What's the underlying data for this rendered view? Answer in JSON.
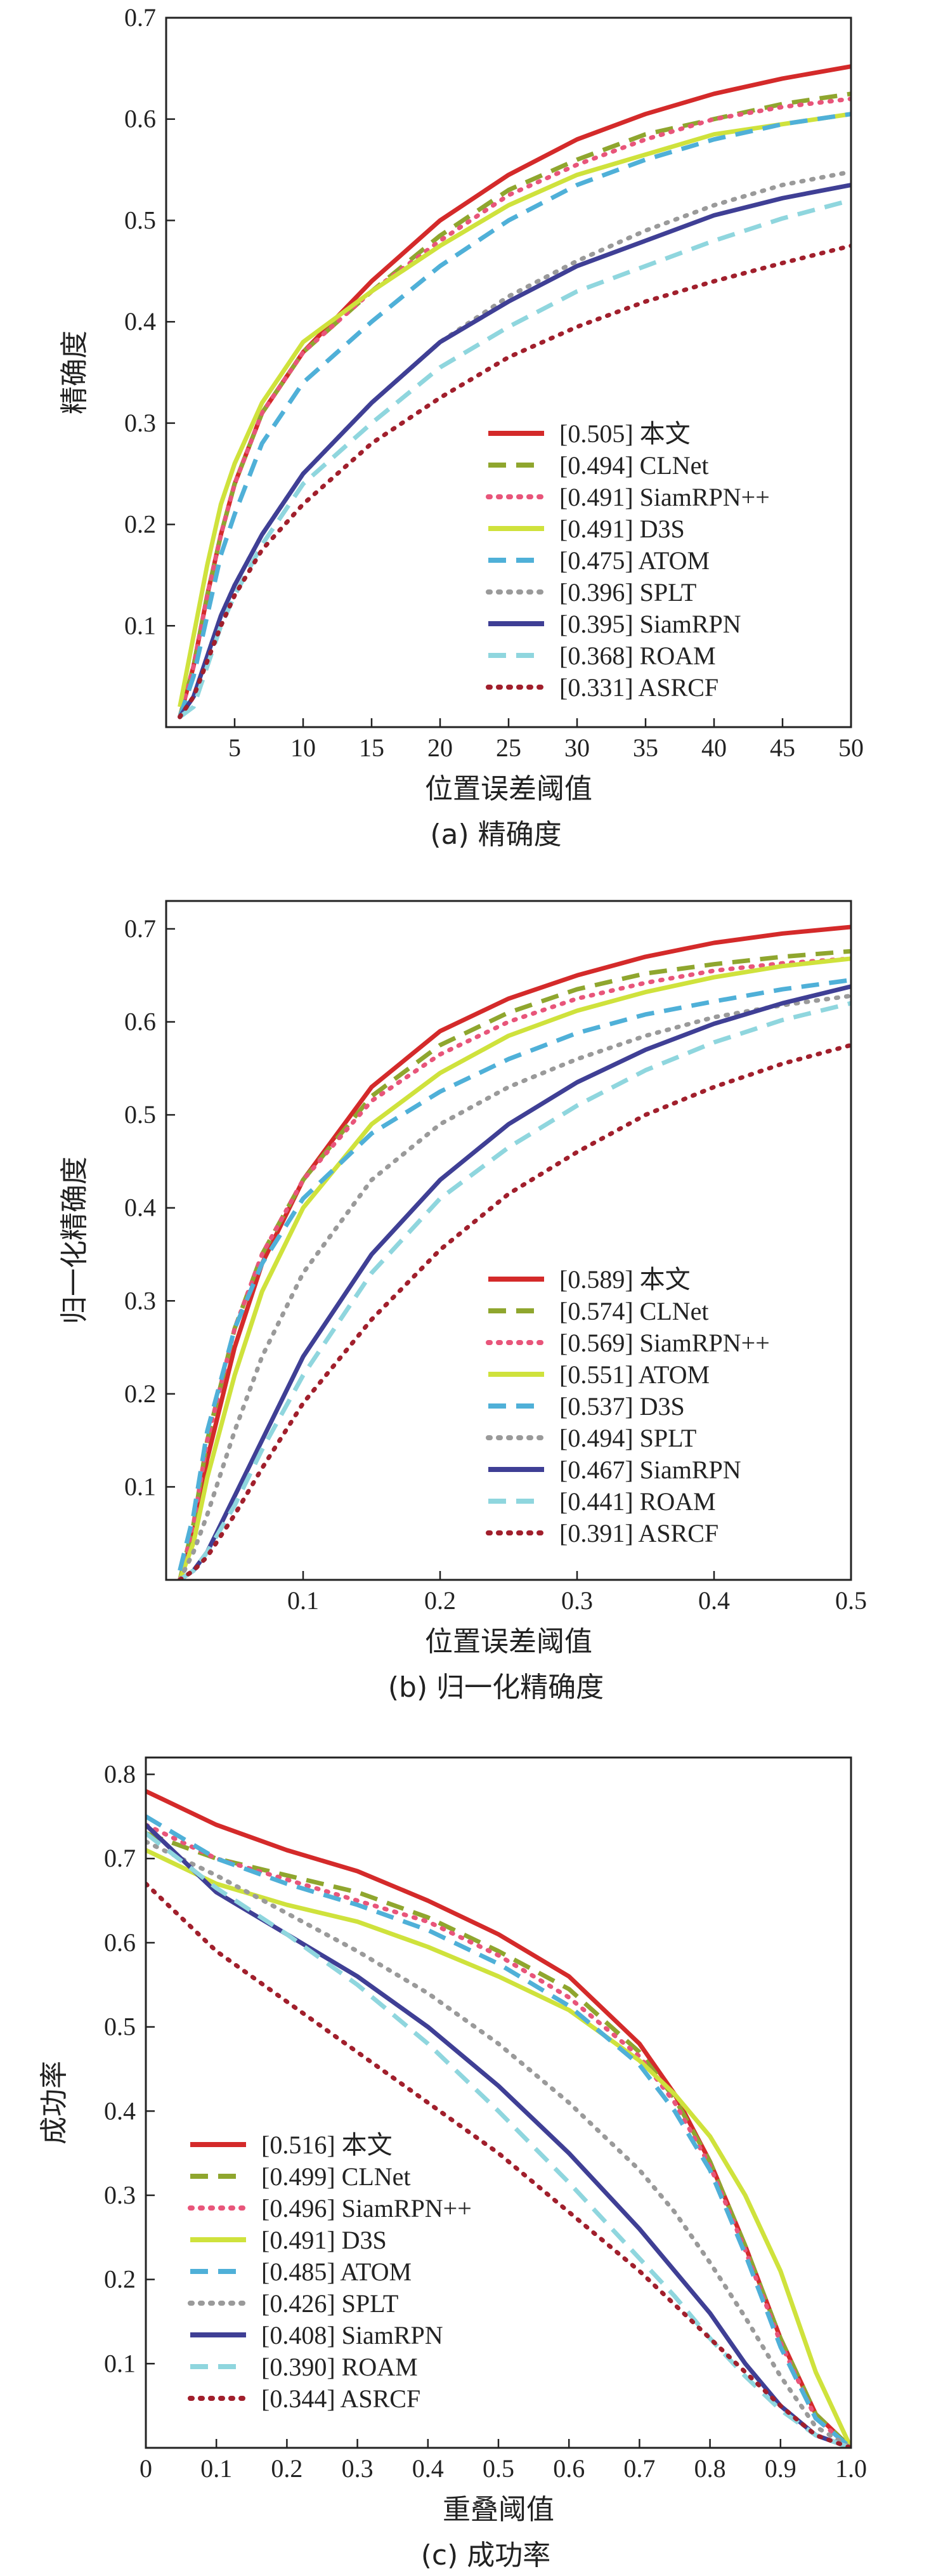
{
  "chart_data": [
    {
      "type": "line",
      "caption": "(a) 精确度",
      "xlabel": "位置误差阈值",
      "ylabel": "精确度",
      "xlim": [
        0,
        50
      ],
      "ylim": [
        0,
        0.7
      ],
      "xticks": [
        5,
        10,
        15,
        20,
        25,
        30,
        35,
        40,
        45,
        50
      ],
      "yticks": [
        0.1,
        0.2,
        0.3,
        0.4,
        0.5,
        0.6,
        0.7
      ],
      "x": [
        1,
        2,
        3,
        4,
        5,
        7,
        10,
        15,
        20,
        25,
        30,
        35,
        40,
        45,
        50
      ],
      "legend_position": "bottom-right",
      "series": [
        {
          "name": "本文",
          "score": "[0.505]",
          "color": "#d42a2a",
          "style": "solid",
          "values": [
            0.01,
            0.06,
            0.13,
            0.19,
            0.24,
            0.31,
            0.37,
            0.44,
            0.5,
            0.545,
            0.58,
            0.605,
            0.625,
            0.64,
            0.652
          ]
        },
        {
          "name": "CLNet",
          "score": "[0.494]",
          "color": "#8fa62e",
          "style": "dashed",
          "values": [
            0.01,
            0.06,
            0.13,
            0.19,
            0.24,
            0.31,
            0.37,
            0.43,
            0.485,
            0.53,
            0.56,
            0.585,
            0.6,
            0.615,
            0.625
          ]
        },
        {
          "name": "SiamRPN++",
          "score": "[0.491]",
          "color": "#e8557a",
          "style": "dotted",
          "values": [
            0.01,
            0.06,
            0.13,
            0.19,
            0.24,
            0.31,
            0.37,
            0.43,
            0.48,
            0.525,
            0.555,
            0.58,
            0.6,
            0.612,
            0.62
          ]
        },
        {
          "name": "D3S",
          "score": "[0.491]",
          "color": "#cfe23c",
          "style": "solid",
          "values": [
            0.02,
            0.09,
            0.16,
            0.22,
            0.26,
            0.32,
            0.38,
            0.43,
            0.475,
            0.515,
            0.545,
            0.565,
            0.585,
            0.595,
            0.605
          ]
        },
        {
          "name": "ATOM",
          "score": "[0.475]",
          "color": "#4fb0d8",
          "style": "dashed",
          "values": [
            0.01,
            0.05,
            0.11,
            0.17,
            0.21,
            0.28,
            0.34,
            0.4,
            0.455,
            0.5,
            0.535,
            0.56,
            0.58,
            0.595,
            0.605
          ]
        },
        {
          "name": "SPLT",
          "score": "[0.396]",
          "color": "#9a9a9a",
          "style": "dotted",
          "values": [
            0.01,
            0.03,
            0.07,
            0.11,
            0.14,
            0.19,
            0.25,
            0.32,
            0.38,
            0.425,
            0.46,
            0.49,
            0.515,
            0.535,
            0.548
          ]
        },
        {
          "name": "SiamRPN",
          "score": "[0.395]",
          "color": "#3f3f95",
          "style": "solid",
          "values": [
            0.01,
            0.03,
            0.07,
            0.11,
            0.14,
            0.19,
            0.25,
            0.32,
            0.38,
            0.42,
            0.455,
            0.48,
            0.505,
            0.522,
            0.535
          ]
        },
        {
          "name": "ROAM",
          "score": "[0.368]",
          "color": "#8fd6de",
          "style": "dashed",
          "values": [
            0.01,
            0.02,
            0.06,
            0.1,
            0.13,
            0.18,
            0.24,
            0.3,
            0.355,
            0.395,
            0.43,
            0.455,
            0.48,
            0.502,
            0.52
          ]
        },
        {
          "name": "ASRCF",
          "score": "[0.331]",
          "color": "#a11f2c",
          "style": "dotted",
          "values": [
            0.01,
            0.03,
            0.065,
            0.1,
            0.13,
            0.175,
            0.22,
            0.28,
            0.325,
            0.365,
            0.395,
            0.42,
            0.44,
            0.458,
            0.475
          ]
        }
      ]
    },
    {
      "type": "line",
      "caption": "(b) 归一化精确度",
      "xlabel": "位置误差阈值",
      "ylabel": "归一化精确度",
      "xlim": [
        0,
        0.5
      ],
      "ylim": [
        0,
        0.73
      ],
      "xticks": [
        0.1,
        0.2,
        0.3,
        0.4,
        0.5
      ],
      "yticks": [
        0.1,
        0.2,
        0.3,
        0.4,
        0.5,
        0.6,
        0.7
      ],
      "x": [
        0.01,
        0.02,
        0.03,
        0.05,
        0.07,
        0.1,
        0.15,
        0.2,
        0.25,
        0.3,
        0.35,
        0.4,
        0.45,
        0.5
      ],
      "legend_position": "bottom-right",
      "series": [
        {
          "name": "本文",
          "score": "[0.589]",
          "color": "#d42a2a",
          "style": "solid",
          "values": [
            0.0,
            0.05,
            0.13,
            0.25,
            0.34,
            0.43,
            0.53,
            0.59,
            0.625,
            0.65,
            0.67,
            0.685,
            0.695,
            0.702
          ]
        },
        {
          "name": "CLNet",
          "score": "[0.574]",
          "color": "#8fa62e",
          "style": "dashed",
          "values": [
            0.0,
            0.06,
            0.15,
            0.27,
            0.35,
            0.43,
            0.52,
            0.575,
            0.61,
            0.635,
            0.652,
            0.662,
            0.67,
            0.676
          ]
        },
        {
          "name": "SiamRPN++",
          "score": "[0.569]",
          "color": "#e8557a",
          "style": "dotted",
          "values": [
            0.0,
            0.06,
            0.15,
            0.27,
            0.35,
            0.43,
            0.515,
            0.565,
            0.6,
            0.625,
            0.642,
            0.655,
            0.663,
            0.668
          ]
        },
        {
          "name": "ATOM",
          "score": "[0.551]",
          "color": "#cfe23c",
          "style": "solid",
          "values": [
            0.0,
            0.04,
            0.11,
            0.22,
            0.31,
            0.4,
            0.49,
            0.545,
            0.585,
            0.612,
            0.632,
            0.648,
            0.66,
            0.668
          ]
        },
        {
          "name": "D3S",
          "score": "[0.537]",
          "color": "#4fb0d8",
          "style": "dashed",
          "values": [
            0.01,
            0.07,
            0.16,
            0.27,
            0.34,
            0.41,
            0.48,
            0.525,
            0.56,
            0.588,
            0.608,
            0.622,
            0.635,
            0.645
          ]
        },
        {
          "name": "SPLT",
          "score": "[0.494]",
          "color": "#9a9a9a",
          "style": "dotted",
          "values": [
            0.0,
            0.03,
            0.07,
            0.16,
            0.24,
            0.33,
            0.43,
            0.49,
            0.53,
            0.56,
            0.585,
            0.605,
            0.618,
            0.628
          ]
        },
        {
          "name": "SiamRPN",
          "score": "[0.467]",
          "color": "#3f3f95",
          "style": "solid",
          "values": [
            0.0,
            0.01,
            0.03,
            0.09,
            0.15,
            0.24,
            0.35,
            0.43,
            0.49,
            0.535,
            0.57,
            0.598,
            0.62,
            0.638
          ]
        },
        {
          "name": "ROAM",
          "score": "[0.441]",
          "color": "#8fd6de",
          "style": "dashed",
          "values": [
            0.0,
            0.01,
            0.03,
            0.08,
            0.14,
            0.22,
            0.33,
            0.41,
            0.465,
            0.51,
            0.548,
            0.578,
            0.602,
            0.62
          ]
        },
        {
          "name": "ASRCF",
          "score": "[0.391]",
          "color": "#a11f2c",
          "style": "dotted",
          "values": [
            0.0,
            0.01,
            0.025,
            0.07,
            0.12,
            0.19,
            0.28,
            0.355,
            0.415,
            0.46,
            0.5,
            0.53,
            0.555,
            0.575
          ]
        }
      ]
    },
    {
      "type": "line",
      "caption": "(c) 成功率",
      "xlabel": "重叠阈值",
      "ylabel": "成功率",
      "xlim": [
        0,
        1.0
      ],
      "ylim": [
        0,
        0.82
      ],
      "xticks": [
        0,
        0.1,
        0.2,
        0.3,
        0.4,
        0.5,
        0.6,
        0.7,
        0.8,
        0.9,
        1.0
      ],
      "yticks": [
        0.1,
        0.2,
        0.3,
        0.4,
        0.5,
        0.6,
        0.7,
        0.8
      ],
      "x": [
        0,
        0.1,
        0.2,
        0.3,
        0.4,
        0.5,
        0.6,
        0.7,
        0.75,
        0.8,
        0.85,
        0.9,
        0.95,
        1.0
      ],
      "legend_position": "bottom-left",
      "series": [
        {
          "name": "本文",
          "score": "[0.516]",
          "color": "#d42a2a",
          "style": "solid",
          "values": [
            0.78,
            0.74,
            0.71,
            0.685,
            0.65,
            0.61,
            0.56,
            0.48,
            0.42,
            0.34,
            0.24,
            0.13,
            0.04,
            0.0
          ]
        },
        {
          "name": "CLNet",
          "score": "[0.499]",
          "color": "#8fa62e",
          "style": "dashed",
          "values": [
            0.73,
            0.7,
            0.68,
            0.66,
            0.63,
            0.59,
            0.545,
            0.47,
            0.415,
            0.34,
            0.24,
            0.13,
            0.04,
            0.0
          ]
        },
        {
          "name": "SiamRPN++",
          "score": "[0.496]",
          "color": "#e8557a",
          "style": "dotted",
          "values": [
            0.74,
            0.7,
            0.675,
            0.65,
            0.625,
            0.585,
            0.535,
            0.465,
            0.41,
            0.335,
            0.235,
            0.125,
            0.035,
            0.0
          ]
        },
        {
          "name": "D3S",
          "score": "[0.491]",
          "color": "#cfe23c",
          "style": "solid",
          "values": [
            0.71,
            0.67,
            0.645,
            0.625,
            0.595,
            0.56,
            0.52,
            0.46,
            0.42,
            0.37,
            0.3,
            0.21,
            0.09,
            0.0
          ]
        },
        {
          "name": "ATOM",
          "score": "[0.485]",
          "color": "#4fb0d8",
          "style": "dashed",
          "values": [
            0.75,
            0.7,
            0.67,
            0.645,
            0.615,
            0.575,
            0.525,
            0.455,
            0.4,
            0.33,
            0.23,
            0.12,
            0.035,
            0.0
          ]
        },
        {
          "name": "SPLT",
          "score": "[0.426]",
          "color": "#9a9a9a",
          "style": "dotted",
          "values": [
            0.72,
            0.68,
            0.635,
            0.59,
            0.54,
            0.48,
            0.41,
            0.33,
            0.28,
            0.22,
            0.155,
            0.085,
            0.025,
            0.0
          ]
        },
        {
          "name": "SiamRPN",
          "score": "[0.408]",
          "color": "#3f3f95",
          "style": "solid",
          "values": [
            0.74,
            0.66,
            0.61,
            0.56,
            0.5,
            0.43,
            0.35,
            0.26,
            0.21,
            0.16,
            0.1,
            0.05,
            0.015,
            0.0
          ]
        },
        {
          "name": "ROAM",
          "score": "[0.390]",
          "color": "#8fd6de",
          "style": "dashed",
          "values": [
            0.73,
            0.665,
            0.61,
            0.55,
            0.48,
            0.4,
            0.315,
            0.225,
            0.18,
            0.13,
            0.085,
            0.045,
            0.015,
            0.0
          ]
        },
        {
          "name": "ASRCF",
          "score": "[0.344]",
          "color": "#a11f2c",
          "style": "dotted",
          "values": [
            0.67,
            0.59,
            0.53,
            0.47,
            0.41,
            0.35,
            0.28,
            0.21,
            0.17,
            0.13,
            0.09,
            0.05,
            0.015,
            0.0
          ]
        }
      ]
    }
  ]
}
